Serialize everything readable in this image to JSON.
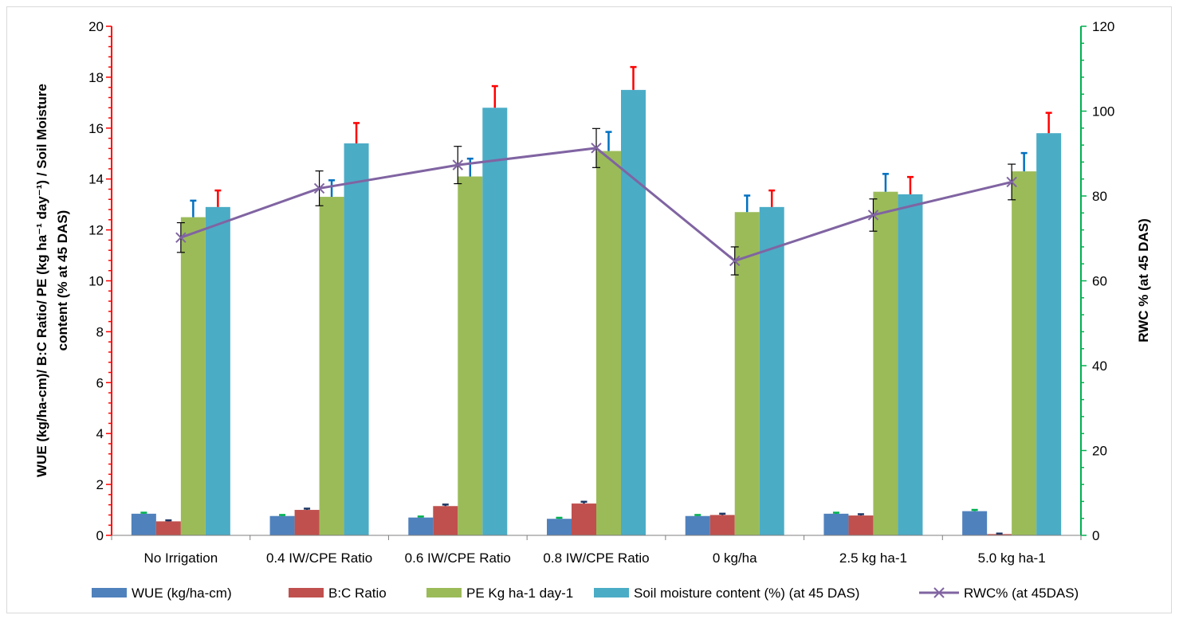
{
  "chart_data": {
    "type": "bar",
    "categories": [
      "No Irrigation",
      "0.4 IW/CPE Ratio",
      "0.6 IW/CPE Ratio",
      "0.8 IW/CPE Ratio",
      "0 kg/ha",
      "2.5 kg ha-1",
      "5.0 kg ha-1"
    ],
    "ylabel_left_line1": "WUE (kg/ha-cm)/ B:C Ratio/ PE (kg ha⁻¹ day⁻¹) / Soil Moisture",
    "ylabel_left_line2": "content (% at 45 DAS)",
    "ylabel_right": "RWC % (at 45 DAS)",
    "ylim": [
      0,
      20
    ],
    "ylim_right": [
      0,
      120
    ],
    "yticks": [
      "0",
      "2",
      "4",
      "6",
      "8",
      "10",
      "12",
      "14",
      "16",
      "18",
      "20"
    ],
    "yticks_right": [
      "0",
      "20",
      "40",
      "60",
      "80",
      "100",
      "120"
    ],
    "series": [
      {
        "name": "WUE (kg/ha-cm)",
        "color": "#4f81bd",
        "type": "bar",
        "values": [
          0.85,
          0.76,
          0.7,
          0.65,
          0.76,
          0.85,
          0.95
        ],
        "errors": [
          0.04,
          0.04,
          0.04,
          0.04,
          0.04,
          0.04,
          0.05
        ],
        "error_color": "#00b050"
      },
      {
        "name": "B:C Ratio",
        "color": "#c0504d",
        "type": "bar",
        "values": [
          0.55,
          1.0,
          1.15,
          1.25,
          0.8,
          0.78,
          0.05
        ],
        "errors": [
          0.04,
          0.05,
          0.06,
          0.07,
          0.05,
          0.05,
          0.02
        ],
        "error_color": "#1f3864"
      },
      {
        "name": "PE Kg ha-1 day-1",
        "color": "#9bbb59",
        "type": "bar",
        "values": [
          12.5,
          13.3,
          14.1,
          15.1,
          12.7,
          13.5,
          14.3
        ],
        "errors": [
          0.65,
          0.65,
          0.7,
          0.75,
          0.65,
          0.7,
          0.72
        ],
        "error_color": "#0070c0"
      },
      {
        "name": "Soil moisture content (%)  (at 45 DAS)",
        "color": "#4bacc6",
        "type": "bar",
        "values": [
          12.9,
          15.4,
          16.8,
          17.5,
          12.9,
          13.4,
          15.8
        ],
        "errors": [
          0.65,
          0.8,
          0.85,
          0.9,
          0.65,
          0.68,
          0.8
        ],
        "error_color": "#ff0000"
      },
      {
        "name": "RWC% (at 45DAS)",
        "color": "#8064a2",
        "type": "line",
        "axis": "right",
        "values": [
          70.2,
          81.8,
          87.3,
          91.3,
          64.7,
          75.5,
          83.3
        ],
        "errors": [
          3.5,
          4.1,
          4.4,
          4.6,
          3.3,
          3.8,
          4.2
        ],
        "error_color": "#000000"
      }
    ]
  }
}
